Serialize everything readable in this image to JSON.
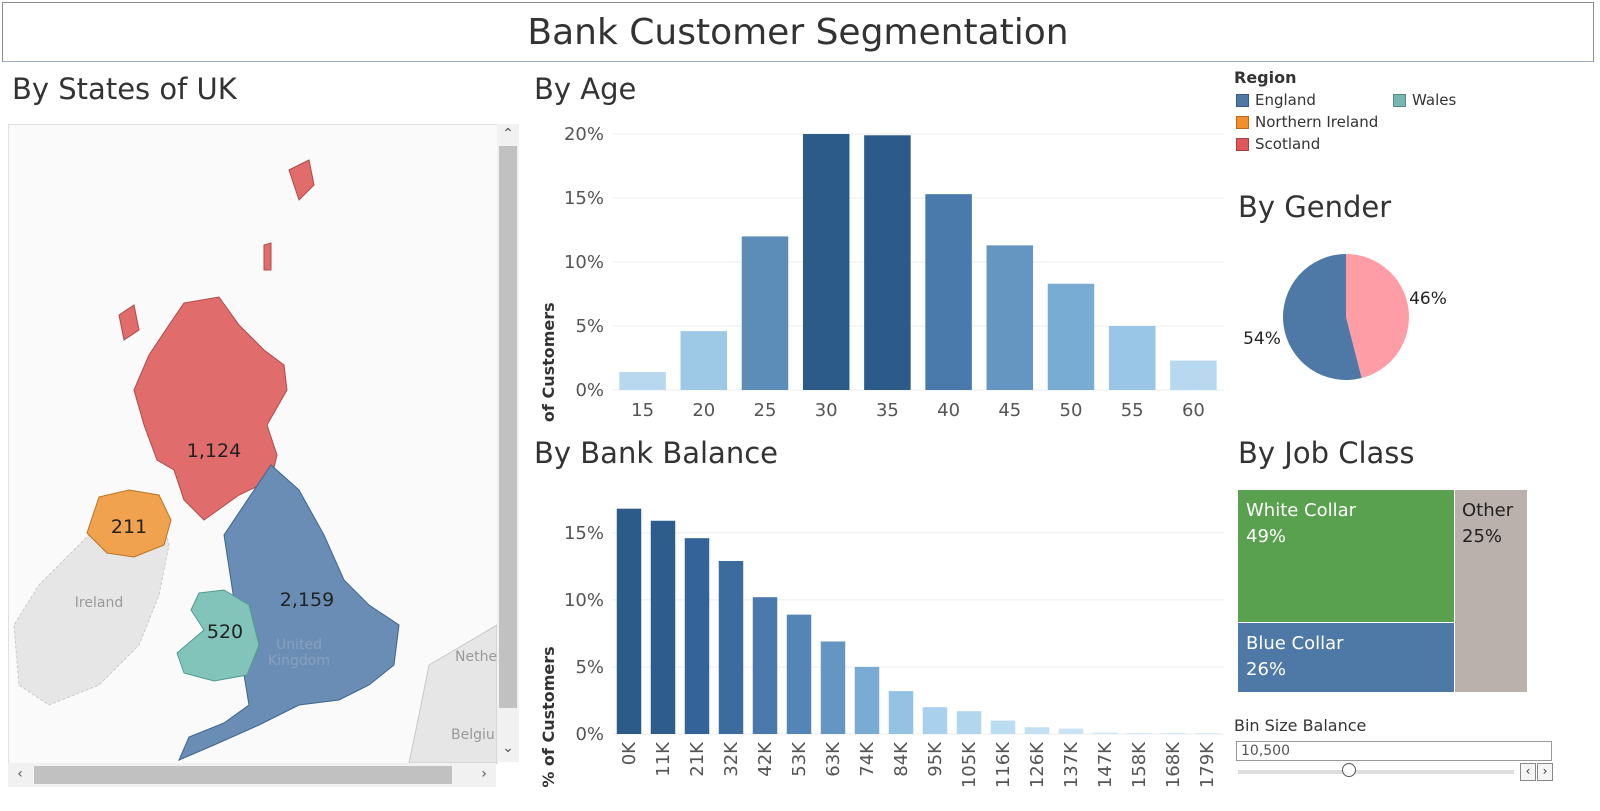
{
  "dashboard": {
    "title": "Bank Customer Segmentation"
  },
  "map": {
    "title": "By States of UK",
    "regions": [
      {
        "name": "Scotland",
        "count": "1,124",
        "color": "#e06c6c"
      },
      {
        "name": "Northern Ireland",
        "count": "211",
        "color": "#f0a24e"
      },
      {
        "name": "England",
        "count": "2,159",
        "color": "#6a8db5"
      },
      {
        "name": "Wales",
        "count": "520",
        "color": "#82c4ba"
      }
    ],
    "place_labels": {
      "ireland": "Ireland",
      "uk_line1": "United",
      "uk_line2": "Kingdom",
      "netherlands": "Nethe",
      "belgium": "Belgiu"
    },
    "scrollbar_icons": {
      "up": "chevron-up-icon",
      "down": "chevron-down-icon",
      "left": "chevron-left-icon",
      "right": "chevron-right-icon"
    }
  },
  "legend": {
    "title": "Region",
    "items": [
      {
        "label": "England",
        "color": "#4e79a7"
      },
      {
        "label": "Northern Ireland",
        "color": "#f28e2b"
      },
      {
        "label": "Scotland",
        "color": "#e15759"
      },
      {
        "label": "Wales",
        "color": "#76b7b2"
      }
    ]
  },
  "age_chart_title": "By Age",
  "balance_chart_title": "By Bank Balance",
  "gender_chart_title": "By Gender",
  "job_chart_title": "By Job Class",
  "slider": {
    "label": "Bin Size Balance",
    "value": "10,500",
    "level": 0.4
  },
  "chart_data": [
    {
      "id": "age",
      "type": "bar",
      "title": "By Age",
      "ylabel": "% of Customers",
      "categories": [
        "15",
        "20",
        "25",
        "30",
        "35",
        "40",
        "45",
        "50",
        "55",
        "60"
      ],
      "values": [
        1.4,
        4.6,
        12.0,
        20.0,
        19.9,
        15.3,
        11.3,
        8.3,
        5.0,
        2.3
      ],
      "ylim": [
        0,
        20
      ],
      "yticks": [
        "0%",
        "5%",
        "10%",
        "15%",
        "20%"
      ],
      "colors": [
        "#b7d8ef",
        "#9ec9e6",
        "#5b8db8",
        "#2c5b8a",
        "#2c5b8a",
        "#4a7aab",
        "#6596c2",
        "#79acd3",
        "#99c6e6",
        "#b7d8ef"
      ],
      "grid": true
    },
    {
      "id": "balance",
      "type": "bar",
      "title": "By Bank Balance",
      "ylabel": "% of Customers",
      "categories": [
        "0K",
        "11K",
        "21K",
        "32K",
        "42K",
        "53K",
        "63K",
        "74K",
        "84K",
        "95K",
        "105K",
        "116K",
        "126K",
        "137K",
        "147K",
        "158K",
        "168K",
        "179K"
      ],
      "values": [
        16.8,
        15.9,
        14.6,
        12.9,
        10.2,
        8.9,
        6.9,
        5.0,
        3.2,
        2.0,
        1.7,
        1.0,
        0.5,
        0.4,
        0.1,
        0.05,
        0.05,
        0.05
      ],
      "ylim": [
        0,
        17
      ],
      "yticks": [
        "0%",
        "5%",
        "10%",
        "15%"
      ],
      "colors": [
        "#2c5b8a",
        "#2e5d8c",
        "#34639a",
        "#3c6c9e",
        "#4a7aab",
        "#5386b6",
        "#6596c2",
        "#7aacd3",
        "#94c2e3",
        "#a9d0ec",
        "#b3d6ef",
        "#bcdcf1",
        "#c3e0f3",
        "#c8e3f4",
        "#cde6f5",
        "#d2e8f6",
        "#d5eaf7",
        "#d8ecf8"
      ],
      "grid": true
    },
    {
      "id": "gender",
      "type": "pie",
      "title": "By Gender",
      "slices": [
        {
          "value": 54,
          "label": "54%",
          "color": "#4e79a7"
        },
        {
          "value": 46,
          "label": "46%",
          "color": "#ff9da7"
        }
      ]
    },
    {
      "id": "job",
      "type": "treemap",
      "title": "By Job Class",
      "items": [
        {
          "name": "White Collar",
          "label": "49%",
          "value": 49,
          "color": "#59a14f"
        },
        {
          "name": "Blue Collar",
          "label": "26%",
          "value": 26,
          "color": "#4e79a7"
        },
        {
          "name": "Other",
          "label": "25%",
          "value": 25,
          "color": "#bab0ac"
        }
      ]
    }
  ]
}
